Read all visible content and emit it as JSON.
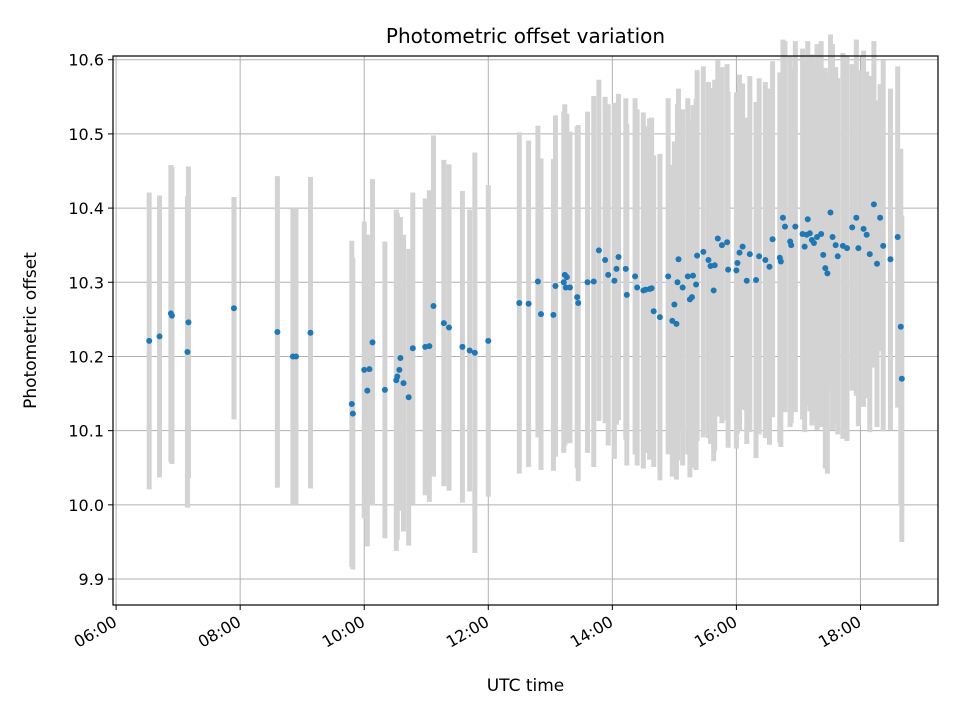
{
  "chart_data": {
    "type": "scatter",
    "title": "Photometric offset variation",
    "xlabel": "UTC time",
    "ylabel": "Photometric offset",
    "x_tick_labels": [
      "06:00",
      "08:00",
      "10:00",
      "12:00",
      "14:00",
      "16:00",
      "18:00"
    ],
    "y_tick_labels": [
      "9.9",
      "10.0",
      "10.1",
      "10.2",
      "10.3",
      "10.4",
      "10.5",
      "10.6"
    ],
    "xlim": [
      "05:57",
      "19:15"
    ],
    "ylim": [
      9.865,
      10.605
    ],
    "grid": true,
    "marker_color": "#1f77b4",
    "errorbar_color": "#d3d3d3",
    "series": [
      {
        "x": [
          "06:32",
          "06:42",
          "06:53",
          "06:54",
          "07:09",
          "07:10",
          "07:54",
          "08:36",
          "08:51",
          "08:54",
          "09:08",
          "09:48",
          "09:49",
          "10:00",
          "10:03",
          "10:05",
          "10:08",
          "10:20",
          "10:31",
          "10:32",
          "10:34",
          "10:35",
          "10:38",
          "10:43",
          "10:47",
          "10:59",
          "11:03",
          "11:07",
          "11:17",
          "11:22",
          "11:35",
          "11:42",
          "11:47",
          "12:00",
          "12:30",
          "12:39",
          "12:48",
          "12:51",
          "13:03",
          "13:05",
          "13:13",
          "13:14",
          "13:15",
          "13:16",
          "13:19",
          "13:26",
          "13:27",
          "13:36",
          "13:42",
          "13:47",
          "13:53",
          "13:56",
          "14:02",
          "14:04",
          "14:06",
          "14:13",
          "14:14",
          "14:22",
          "14:24",
          "14:30",
          "14:32",
          "14:36",
          "14:38",
          "14:40",
          "14:46",
          "14:54",
          "14:58",
          "15:00",
          "15:02",
          "15:03",
          "15:04",
          "15:08",
          "15:13",
          "15:15",
          "15:17",
          "15:18",
          "15:21",
          "15:22",
          "15:28",
          "15:33",
          "15:35",
          "15:38",
          "15:39",
          "15:42",
          "15:46",
          "15:51",
          "15:52",
          "16:00",
          "16:01",
          "16:03",
          "16:06",
          "16:10",
          "16:13",
          "16:19",
          "16:22",
          "16:28",
          "16:32",
          "16:35",
          "16:42",
          "16:43",
          "16:45",
          "16:47",
          "16:52",
          "16:53",
          "16:57",
          "17:04",
          "17:06",
          "17:08",
          "17:09",
          "17:11",
          "17:13",
          "17:15",
          "17:18",
          "17:22",
          "17:24",
          "17:26",
          "17:28",
          "17:31",
          "17:33",
          "17:36",
          "17:38",
          "17:43",
          "17:47",
          "17:52",
          "17:56",
          "17:58",
          "18:03",
          "18:06",
          "18:09",
          "18:13",
          "18:16",
          "18:19",
          "18:22",
          "18:29",
          "18:36",
          "18:39"
        ],
        "y": [
          10.221,
          10.227,
          10.258,
          10.255,
          10.206,
          10.246,
          10.265,
          10.233,
          10.2,
          10.2,
          10.232,
          10.136,
          10.123,
          10.182,
          10.154,
          10.183,
          10.219,
          10.155,
          10.168,
          10.173,
          10.182,
          10.198,
          10.164,
          10.145,
          10.211,
          10.213,
          10.214,
          10.268,
          10.245,
          10.239,
          10.213,
          10.208,
          10.205,
          10.221,
          10.272,
          10.271,
          10.301,
          10.257,
          10.256,
          10.295,
          10.3,
          10.31,
          10.293,
          10.307,
          10.293,
          10.28,
          10.272,
          10.3,
          10.301,
          10.343,
          10.33,
          10.31,
          10.302,
          10.318,
          10.334,
          10.318,
          10.283,
          10.308,
          10.293,
          10.289,
          10.29,
          10.291,
          10.292,
          10.261,
          10.253,
          10.308,
          10.248,
          10.27,
          10.244,
          10.3,
          10.331,
          10.293,
          10.308,
          10.277,
          10.28,
          10.309,
          10.297,
          10.336,
          10.341,
          10.33,
          10.322,
          10.289,
          10.323,
          10.359,
          10.35,
          10.354,
          10.317,
          10.316,
          10.326,
          10.34,
          10.348,
          10.302,
          10.338,
          10.303,
          10.335,
          10.33,
          10.321,
          10.358,
          10.333,
          10.328,
          10.387,
          10.375,
          10.355,
          10.35,
          10.375,
          10.365,
          10.348,
          10.364,
          10.385,
          10.366,
          10.357,
          10.353,
          10.361,
          10.365,
          10.337,
          10.319,
          10.312,
          10.394,
          10.361,
          10.35,
          10.335,
          10.349,
          10.346,
          10.374,
          10.387,
          10.346,
          10.372,
          10.364,
          10.338,
          10.405,
          10.325,
          10.387,
          10.349,
          10.331,
          10.361,
          10.24
        ],
        "error": [
          0.2,
          0.19,
          0.2,
          0.2,
          0.21,
          0.21,
          0.15,
          0.21,
          0.2,
          0.2,
          0.21,
          0.22,
          0.21,
          0.2,
          0.21,
          0.18,
          0.22,
          0.2,
          0.23,
          0.22,
          0.19,
          0.19,
          0.2,
          0.2,
          0.21,
          0.2,
          0.21,
          0.23,
          0.22,
          0.22,
          0.21,
          0.19,
          0.27,
          0.21,
          0.23,
          0.22,
          0.21,
          0.21,
          0.21,
          0.23,
          0.23,
          0.23,
          0.21,
          0.22,
          0.21,
          0.23,
          0.24,
          0.23,
          0.25,
          0.23,
          0.22,
          0.23,
          0.24,
          0.21,
          0.22,
          0.23,
          0.23,
          0.24,
          0.24,
          0.24,
          0.22,
          0.23,
          0.23,
          0.21,
          0.22,
          0.24,
          0.21,
          0.22,
          0.21,
          0.24,
          0.23,
          0.24,
          0.24,
          0.24,
          0.23,
          0.23,
          0.25,
          0.25,
          0.25,
          0.24,
          0.24,
          0.23,
          0.25,
          0.24,
          0.24,
          0.24,
          0.24,
          0.24,
          0.23,
          0.24,
          0.22,
          0.22,
          0.24,
          0.24,
          0.24,
          0.24,
          0.24,
          0.24,
          0.25,
          0.25,
          0.24,
          0.25,
          0.25,
          0.24,
          0.25,
          0.25,
          0.25,
          0.23,
          0.24,
          0.24,
          0.25,
          0.24,
          0.26,
          0.26,
          0.23,
          0.27,
          0.27,
          0.24,
          0.26,
          0.24,
          0.24,
          0.26,
          0.26,
          0.22,
          0.24,
          0.24,
          0.24,
          0.22,
          0.24,
          0.22,
          0.22,
          0.18,
          0.25,
          0.23,
          0.23,
          0.24
        ]
      },
      {
        "x": [
          "18:40"
        ],
        "y": [
          10.17
        ],
        "error": [
          0.22
        ]
      }
    ]
  }
}
